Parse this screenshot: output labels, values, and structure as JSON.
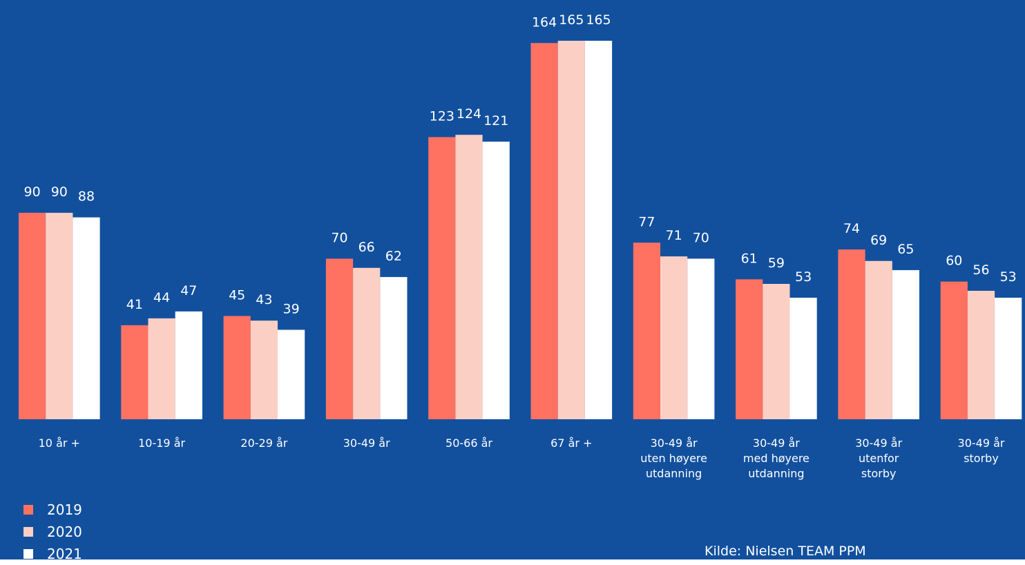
{
  "chart_data": {
    "type": "bar",
    "categories": [
      [
        "10 år +"
      ],
      [
        "10-19 år"
      ],
      [
        "20-29 år"
      ],
      [
        "30-49 år"
      ],
      [
        "50-66 år"
      ],
      [
        "67 år +"
      ],
      [
        "30-49 år",
        "uten høyere",
        "utdanning"
      ],
      [
        "30-49 år",
        "med høyere",
        "utdanning"
      ],
      [
        "30-49 år",
        "utenfor",
        "storby"
      ],
      [
        "30-49 år",
        "storby"
      ]
    ],
    "series": [
      {
        "name": "2019",
        "color": "#FF7261",
        "values": [
          90,
          41,
          45,
          70,
          123,
          164,
          77,
          61,
          74,
          60
        ]
      },
      {
        "name": "2020",
        "color": "#FBCFC4",
        "values": [
          90,
          44,
          43,
          66,
          124,
          165,
          71,
          59,
          69,
          56
        ]
      },
      {
        "name": "2021",
        "color": "#FFFFFF",
        "values": [
          88,
          47,
          39,
          62,
          121,
          165,
          70,
          53,
          65,
          53
        ]
      }
    ],
    "ylim": [
      0,
      170
    ],
    "grid": false,
    "legend_position": "bottom-left",
    "background": "#12509E"
  },
  "source": "Kilde: Nielsen TEAM PPM"
}
